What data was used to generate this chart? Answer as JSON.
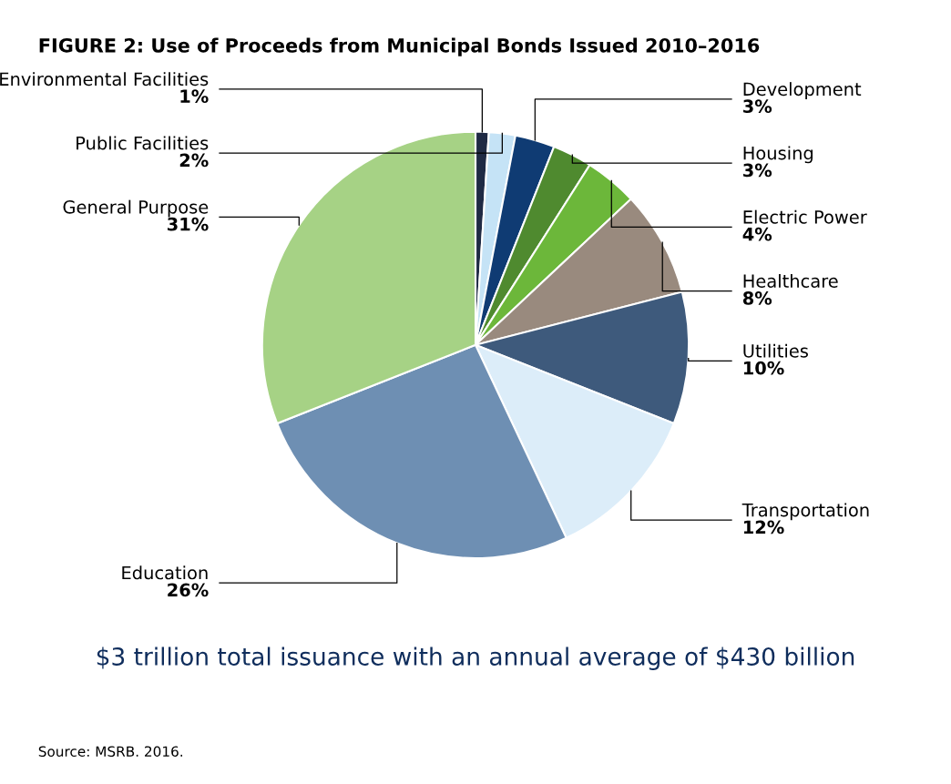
{
  "chart_data": {
    "type": "pie",
    "title": "FIGURE 2: Use of Proceeds from Municipal Bonds Issued 2010–2016",
    "categories": [
      "Environmental Facilities",
      "Public Facilities",
      "Development",
      "Housing",
      "Electric Power",
      "Healthcare",
      "Utilities",
      "Transportation",
      "Education",
      "General Purpose"
    ],
    "values": [
      1,
      2,
      3,
      3,
      4,
      8,
      10,
      12,
      26,
      31
    ],
    "colors": [
      "#1f2a44",
      "#c5e3f6",
      "#0f3b73",
      "#4f8a2f",
      "#6cb73a",
      "#998a7e",
      "#3e5a7c",
      "#dcedf9",
      "#6e8fb3",
      "#a6d285"
    ],
    "value_labels": [
      "1%",
      "2%",
      "3%",
      "3%",
      "4%",
      "8%",
      "10%",
      "12%",
      "26%",
      "31%"
    ],
    "annotations": [
      "$3 trillion total issuance with an annual average of $430 billion",
      "Source: MSRB. 2016."
    ]
  }
}
